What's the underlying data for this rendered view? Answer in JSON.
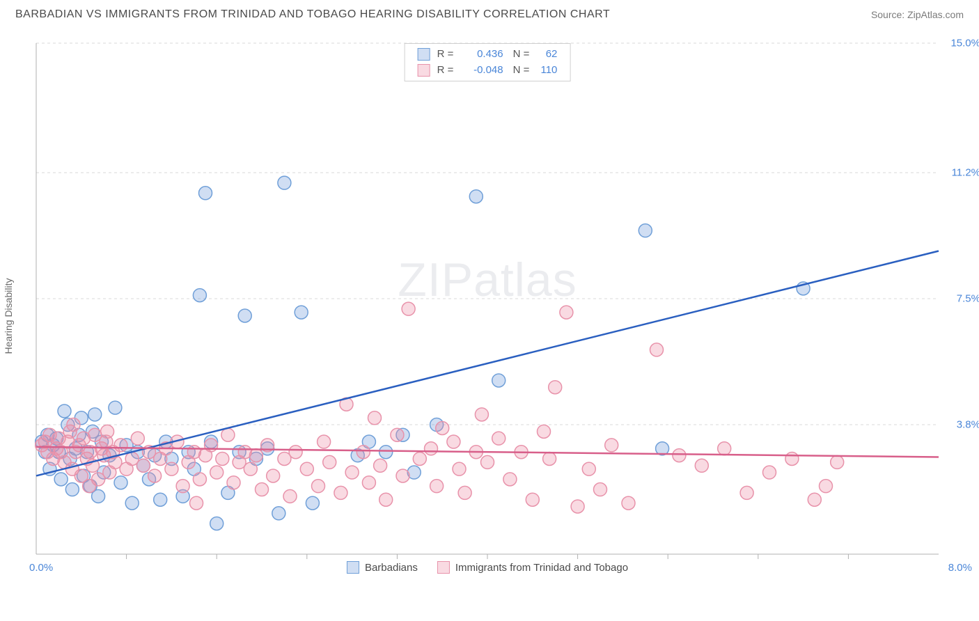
{
  "title": "BARBADIAN VS IMMIGRANTS FROM TRINIDAD AND TOBAGO HEARING DISABILITY CORRELATION CHART",
  "source": "Source: ZipAtlas.com",
  "y_axis_label": "Hearing Disability",
  "watermark": "ZIPatlas",
  "chart": {
    "type": "scatter",
    "xlim": [
      0.0,
      8.0
    ],
    "ylim": [
      0.0,
      15.0
    ],
    "x_origin_label": "0.0%",
    "x_max_label": "8.0%",
    "y_ticks": [
      {
        "v": 3.8,
        "label": "3.8%"
      },
      {
        "v": 7.5,
        "label": "7.5%"
      },
      {
        "v": 11.2,
        "label": "11.2%"
      },
      {
        "v": 15.0,
        "label": "15.0%"
      }
    ],
    "grid_color": "#d8d8d8",
    "axis_color": "#b0b0b0",
    "x_tick_positions_pct": [
      10,
      20,
      30,
      40,
      50,
      60,
      70,
      80,
      90
    ],
    "background_color": "#ffffff",
    "marker_radius": 9.5,
    "marker_stroke_width": 1.5,
    "series": [
      {
        "id": "barbadians",
        "label": "Barbadians",
        "fill": "rgba(120,160,220,0.35)",
        "stroke": "#6f9fd8",
        "r_value": "0.436",
        "n_value": "62",
        "value_color": "#4a86d8",
        "regression": {
          "x1": 0.0,
          "y1": 2.3,
          "x2": 8.0,
          "y2": 8.9,
          "stroke": "#2a5fc0",
          "width": 2.5
        },
        "points": [
          [
            0.05,
            3.3
          ],
          [
            0.08,
            3.0
          ],
          [
            0.1,
            3.5
          ],
          [
            0.12,
            2.5
          ],
          [
            0.15,
            3.2
          ],
          [
            0.18,
            3.4
          ],
          [
            0.2,
            3.0
          ],
          [
            0.25,
            4.2
          ],
          [
            0.28,
            3.8
          ],
          [
            0.3,
            2.8
          ],
          [
            0.35,
            3.1
          ],
          [
            0.38,
            3.5
          ],
          [
            0.4,
            4.0
          ],
          [
            0.42,
            2.3
          ],
          [
            0.45,
            3.0
          ],
          [
            0.48,
            2.0
          ],
          [
            0.5,
            3.6
          ],
          [
            0.55,
            1.7
          ],
          [
            0.58,
            3.3
          ],
          [
            0.6,
            2.4
          ],
          [
            0.65,
            2.9
          ],
          [
            0.7,
            4.3
          ],
          [
            0.75,
            2.1
          ],
          [
            0.8,
            3.2
          ],
          [
            0.85,
            1.5
          ],
          [
            0.9,
            3.0
          ],
          [
            0.95,
            2.6
          ],
          [
            1.0,
            2.2
          ],
          [
            1.05,
            2.9
          ],
          [
            1.1,
            1.6
          ],
          [
            1.15,
            3.3
          ],
          [
            1.2,
            2.8
          ],
          [
            1.3,
            1.7
          ],
          [
            1.35,
            3.0
          ],
          [
            1.4,
            2.5
          ],
          [
            1.45,
            7.6
          ],
          [
            1.5,
            10.6
          ],
          [
            1.55,
            3.3
          ],
          [
            1.6,
            0.9
          ],
          [
            1.7,
            1.8
          ],
          [
            1.8,
            3.0
          ],
          [
            1.85,
            7.0
          ],
          [
            1.95,
            2.8
          ],
          [
            2.05,
            3.1
          ],
          [
            2.15,
            1.2
          ],
          [
            2.2,
            10.9
          ],
          [
            2.35,
            7.1
          ],
          [
            2.45,
            1.5
          ],
          [
            2.85,
            2.9
          ],
          [
            2.95,
            3.3
          ],
          [
            3.1,
            3.0
          ],
          [
            3.25,
            3.5
          ],
          [
            3.35,
            2.4
          ],
          [
            3.55,
            3.8
          ],
          [
            3.9,
            10.5
          ],
          [
            4.1,
            5.1
          ],
          [
            5.4,
            9.5
          ],
          [
            5.55,
            3.1
          ],
          [
            6.8,
            7.8
          ],
          [
            0.22,
            2.2
          ],
          [
            0.32,
            1.9
          ],
          [
            0.52,
            4.1
          ]
        ]
      },
      {
        "id": "trinidad",
        "label": "Immigrants from Trinidad and Tobago",
        "fill": "rgba(235,140,165,0.32)",
        "stroke": "#e892aa",
        "r_value": "-0.048",
        "n_value": "110",
        "value_color": "#4a86d8",
        "regression": {
          "x1": 0.0,
          "y1": 3.15,
          "x2": 8.0,
          "y2": 2.85,
          "stroke": "#d85f8a",
          "width": 2.5
        },
        "points": [
          [
            0.05,
            3.2
          ],
          [
            0.08,
            3.3
          ],
          [
            0.1,
            3.0
          ],
          [
            0.12,
            3.5
          ],
          [
            0.15,
            2.8
          ],
          [
            0.18,
            3.1
          ],
          [
            0.2,
            3.4
          ],
          [
            0.22,
            3.0
          ],
          [
            0.25,
            2.7
          ],
          [
            0.28,
            3.3
          ],
          [
            0.3,
            3.6
          ],
          [
            0.32,
            2.5
          ],
          [
            0.35,
            3.0
          ],
          [
            0.38,
            3.2
          ],
          [
            0.4,
            2.3
          ],
          [
            0.42,
            3.4
          ],
          [
            0.45,
            2.8
          ],
          [
            0.48,
            3.0
          ],
          [
            0.5,
            2.6
          ],
          [
            0.52,
            3.5
          ],
          [
            0.55,
            2.2
          ],
          [
            0.58,
            3.1
          ],
          [
            0.6,
            2.9
          ],
          [
            0.62,
            3.3
          ],
          [
            0.65,
            2.4
          ],
          [
            0.68,
            3.0
          ],
          [
            0.7,
            2.7
          ],
          [
            0.75,
            3.2
          ],
          [
            0.8,
            2.5
          ],
          [
            0.85,
            2.8
          ],
          [
            0.9,
            3.4
          ],
          [
            0.95,
            2.6
          ],
          [
            1.0,
            3.0
          ],
          [
            1.05,
            2.3
          ],
          [
            1.1,
            2.8
          ],
          [
            1.15,
            3.1
          ],
          [
            1.2,
            2.5
          ],
          [
            1.25,
            3.3
          ],
          [
            1.3,
            2.0
          ],
          [
            1.35,
            2.7
          ],
          [
            1.4,
            3.0
          ],
          [
            1.45,
            2.2
          ],
          [
            1.5,
            2.9
          ],
          [
            1.55,
            3.2
          ],
          [
            1.6,
            2.4
          ],
          [
            1.65,
            2.8
          ],
          [
            1.7,
            3.5
          ],
          [
            1.75,
            2.1
          ],
          [
            1.8,
            2.7
          ],
          [
            1.85,
            3.0
          ],
          [
            1.9,
            2.5
          ],
          [
            1.95,
            2.9
          ],
          [
            2.0,
            1.9
          ],
          [
            2.05,
            3.2
          ],
          [
            2.1,
            2.3
          ],
          [
            2.2,
            2.8
          ],
          [
            2.25,
            1.7
          ],
          [
            2.3,
            3.0
          ],
          [
            2.4,
            2.5
          ],
          [
            2.5,
            2.0
          ],
          [
            2.55,
            3.3
          ],
          [
            2.6,
            2.7
          ],
          [
            2.7,
            1.8
          ],
          [
            2.75,
            4.4
          ],
          [
            2.8,
            2.4
          ],
          [
            2.9,
            3.0
          ],
          [
            2.95,
            2.1
          ],
          [
            3.0,
            4.0
          ],
          [
            3.05,
            2.6
          ],
          [
            3.1,
            1.6
          ],
          [
            3.2,
            3.5
          ],
          [
            3.25,
            2.3
          ],
          [
            3.3,
            7.2
          ],
          [
            3.4,
            2.8
          ],
          [
            3.5,
            3.1
          ],
          [
            3.55,
            2.0
          ],
          [
            3.6,
            3.7
          ],
          [
            3.7,
            3.3
          ],
          [
            3.75,
            2.5
          ],
          [
            3.8,
            1.8
          ],
          [
            3.9,
            3.0
          ],
          [
            3.95,
            4.1
          ],
          [
            4.0,
            2.7
          ],
          [
            4.1,
            3.4
          ],
          [
            4.2,
            2.2
          ],
          [
            4.3,
            3.0
          ],
          [
            4.4,
            1.6
          ],
          [
            4.5,
            3.6
          ],
          [
            4.55,
            2.8
          ],
          [
            4.6,
            4.9
          ],
          [
            4.7,
            7.1
          ],
          [
            4.8,
            1.4
          ],
          [
            4.9,
            2.5
          ],
          [
            5.0,
            1.9
          ],
          [
            5.1,
            3.2
          ],
          [
            5.25,
            1.5
          ],
          [
            5.5,
            6.0
          ],
          [
            5.7,
            2.9
          ],
          [
            5.9,
            2.6
          ],
          [
            6.1,
            3.1
          ],
          [
            6.3,
            1.8
          ],
          [
            6.5,
            2.4
          ],
          [
            6.7,
            2.8
          ],
          [
            6.9,
            1.6
          ],
          [
            7.0,
            2.0
          ],
          [
            7.1,
            2.7
          ],
          [
            0.33,
            3.8
          ],
          [
            0.47,
            2.0
          ],
          [
            0.63,
            3.6
          ],
          [
            1.42,
            1.5
          ]
        ]
      }
    ]
  },
  "r_legend": {
    "r_label": "R =",
    "n_label": "N ="
  },
  "axis_label_color": "#4a86d8"
}
